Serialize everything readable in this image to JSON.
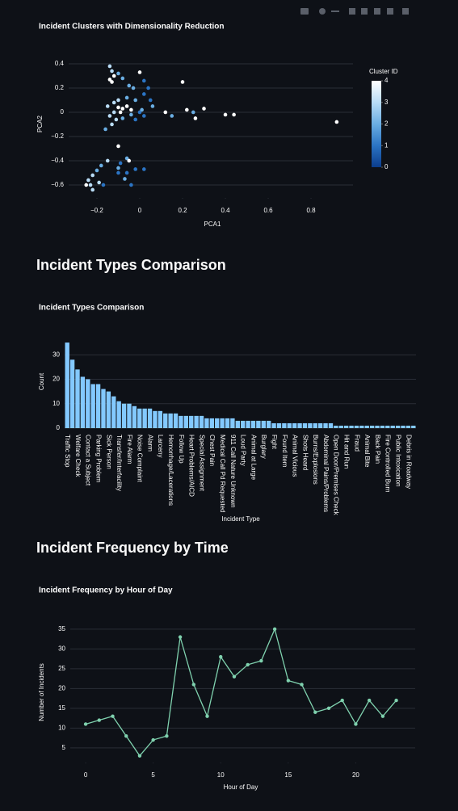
{
  "headings": [
    "Incident Types Comparison",
    "Incident Frequency by Time"
  ],
  "chart_data": [
    {
      "type": "scatter",
      "title": "Incident Clusters with Dimensionality Reduction",
      "xlabel": "PCA1",
      "ylabel": "PCA2",
      "x": [
        -0.14,
        -0.13,
        -0.12,
        -0.14,
        -0.13,
        -0.1,
        -0.08,
        -0.05,
        -0.03,
        0.0,
        0.02,
        0.04,
        0.02,
        0.05,
        0.06,
        -0.02,
        -0.06,
        -0.1,
        -0.12,
        -0.15,
        -0.1,
        -0.08,
        -0.06,
        -0.04,
        -0.09,
        -0.12,
        -0.14,
        -0.11,
        -0.13,
        -0.16,
        -0.08,
        -0.04,
        0.0,
        0.02,
        -0.02,
        0.01,
        0.12,
        0.15,
        0.2,
        0.22,
        0.25,
        0.26,
        0.3,
        0.4,
        0.44,
        0.92,
        -0.1,
        -0.06,
        -0.09,
        -0.1,
        -0.1,
        -0.06,
        -0.07,
        -0.05,
        -0.04,
        -0.02,
        -0.15,
        -0.18,
        -0.2,
        -0.22,
        -0.24,
        -0.23,
        -0.22,
        -0.25,
        -0.19,
        -0.17,
        0.02
      ],
      "values": [
        0.38,
        0.34,
        0.3,
        0.27,
        0.25,
        0.32,
        0.28,
        0.22,
        0.2,
        0.33,
        0.26,
        0.2,
        0.15,
        0.1,
        0.05,
        0.1,
        0.12,
        0.1,
        0.08,
        0.05,
        0.04,
        0.03,
        0.05,
        0.02,
        0.0,
        0.0,
        -0.03,
        -0.06,
        -0.1,
        -0.14,
        -0.05,
        -0.02,
        0.0,
        -0.03,
        -0.06,
        0.02,
        0.0,
        -0.03,
        0.25,
        0.02,
        0.0,
        -0.05,
        0.03,
        -0.02,
        -0.02,
        -0.08,
        -0.28,
        -0.38,
        -0.42,
        -0.46,
        -0.5,
        -0.5,
        -0.55,
        -0.4,
        -0.6,
        -0.47,
        -0.4,
        -0.44,
        -0.48,
        -0.52,
        -0.56,
        -0.6,
        -0.64,
        -0.6,
        -0.58,
        -0.6,
        -0.47
      ],
      "clusters": [
        3,
        3,
        4,
        4,
        4,
        2,
        2,
        2,
        2,
        4,
        1,
        1,
        1,
        1,
        2,
        2,
        2,
        3,
        3,
        3,
        4,
        4,
        4,
        4,
        4,
        3,
        3,
        3,
        3,
        2,
        2,
        2,
        1,
        1,
        1,
        2,
        4,
        2,
        4,
        4,
        2,
        4,
        4,
        4,
        4,
        4,
        4,
        2,
        1,
        2,
        1,
        1,
        2,
        4,
        1,
        1,
        3,
        2,
        2,
        3,
        3,
        3,
        3,
        4,
        3,
        1,
        1
      ],
      "colorscale": [
        "#0b3d8c",
        "#2b74c4",
        "#6aaee3",
        "#b9dcf6",
        "#ffffff"
      ],
      "colorbar": {
        "title": "Cluster ID",
        "lim": [
          0,
          4
        ],
        "ticks": [
          0,
          1,
          2,
          3,
          4
        ]
      },
      "xlim": [
        -0.332,
        0.996
      ],
      "xticks": [
        {
          "value": -0.2,
          "label": "−0.2"
        },
        0,
        0.2,
        0.4,
        0.6,
        0.8
      ],
      "ylim": [
        -0.707,
        0.513
      ],
      "yticks": [
        {
          "value": -0.6,
          "label": "−0.6"
        },
        {
          "value": -0.4,
          "label": "−0.4"
        },
        {
          "value": -0.2,
          "label": "−0.2"
        },
        0,
        0.2,
        0.4
      ],
      "grid": true
    },
    {
      "type": "bar",
      "title": "Incident Types Comparison",
      "xlabel": "Incident Type",
      "ylabel": "Count",
      "color": "#83c9ff",
      "categories": [
        "Traffic Stop",
        null,
        "Welfare Check",
        null,
        "Contact a Subject",
        null,
        "Parking Problem",
        null,
        "Sick Person",
        null,
        "Transfer/Interfacility",
        null,
        "Fire Alarm",
        null,
        "Noise Complaint",
        null,
        "Alarm",
        null,
        "Larceny",
        null,
        "Hemorrhage/Lacerations",
        null,
        "Follow Up",
        null,
        "Heart Problems/AICD",
        null,
        "Special Assignment",
        null,
        "Chest Pain",
        null,
        "Medical Call Pd Requested",
        null,
        "911 Call Nature Unknown",
        null,
        "Loud Party",
        null,
        "Animal at Large",
        null,
        "Burglary",
        null,
        "Fight",
        null,
        "Found Item",
        null,
        "Animal Vicious",
        null,
        "Shots Heard",
        null,
        "Burns/Explosions",
        null,
        "Abdominal Pains/Problems",
        null,
        "Open Door/Premises Check",
        null,
        "Hit and Run",
        null,
        "Fraud",
        null,
        "Animal Bite",
        null,
        "Back Pain",
        null,
        "Fire Controlled Burn",
        null,
        "Public Intoxication",
        null,
        "Debris in Roadway",
        null
      ],
      "values": [
        35,
        28,
        24,
        21,
        20,
        18,
        18,
        16,
        15,
        13,
        11,
        10,
        10,
        9,
        8,
        8,
        8,
        7,
        7,
        6,
        6,
        6,
        5,
        5,
        5,
        5,
        5,
        4,
        4,
        4,
        4,
        4,
        4,
        3,
        3,
        3,
        3,
        3,
        3,
        3,
        2,
        2,
        2,
        2,
        2,
        2,
        2,
        2,
        2,
        2,
        2,
        2,
        1,
        1,
        1,
        1,
        1,
        1,
        1,
        1,
        1,
        1,
        1,
        1,
        1,
        1,
        1,
        1
      ],
      "ylim": [
        0,
        38
      ],
      "yticks": [
        0,
        10,
        20,
        30
      ],
      "grid": true
    },
    {
      "type": "line",
      "title": "Incident Frequency by Hour of Day",
      "xlabel": "Hour of Day",
      "ylabel": "Number of Incidents",
      "color": "#7fd1ae",
      "x": [
        0,
        1,
        2,
        3,
        4,
        5,
        6,
        7,
        8,
        9,
        10,
        11,
        12,
        13,
        14,
        15,
        16,
        17,
        18,
        19,
        20,
        21,
        22,
        23
      ],
      "values": [
        11,
        12,
        13,
        8,
        3,
        7,
        8,
        33,
        21,
        13,
        28,
        23,
        26,
        27,
        35,
        22,
        21,
        14,
        15,
        17,
        11,
        17,
        13,
        17
      ],
      "xlim": [
        -1.14,
        24.4
      ],
      "xticks": [
        0,
        5,
        10,
        15,
        20
      ],
      "ylim": [
        1.3,
        36.8
      ],
      "yticks": [
        5,
        10,
        15,
        20,
        25,
        30,
        35
      ],
      "grid": true
    }
  ]
}
